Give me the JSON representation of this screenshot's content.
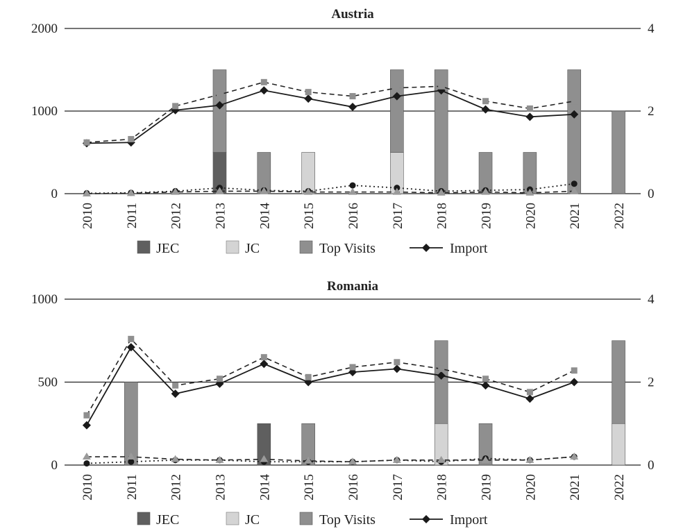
{
  "legend": {
    "jec_label": "JEC",
    "jc_label": "JC",
    "top_visits_label": "Top Visits",
    "import_label": "Import"
  },
  "colors": {
    "jec": "#5f5f5f",
    "jc": "#d4d4d4",
    "top_visits": "#8f8f8f",
    "import_line": "#1a1a1a",
    "dashed_series": "#8f8f8f"
  },
  "chart_data": [
    {
      "type": "bar",
      "title": "Austria",
      "categories": [
        "2010",
        "2011",
        "2012",
        "2013",
        "2014",
        "2015",
        "2016",
        "2017",
        "2018",
        "2019",
        "2020",
        "2021",
        "2022"
      ],
      "left_axis": {
        "ylim": [
          0,
          2000
        ],
        "ticks": [
          "0",
          "1000",
          "2000"
        ],
        "tick_values": [
          0,
          1000,
          2000
        ]
      },
      "right_axis": {
        "ylim": [
          0,
          4
        ],
        "ticks": [
          "0",
          "2",
          "4"
        ],
        "tick_values": [
          0,
          2,
          4
        ]
      },
      "grid": true,
      "legend_position": "bottom",
      "bar_series": [
        {
          "name": "JEC",
          "axis": "right",
          "values": [
            0,
            0,
            0,
            1,
            0,
            0,
            0,
            0,
            0,
            0,
            0,
            0,
            0
          ]
        },
        {
          "name": "JC",
          "axis": "right",
          "values": [
            0,
            0,
            0,
            0,
            0,
            1,
            0,
            1,
            0,
            0,
            0,
            0,
            0
          ]
        },
        {
          "name": "Top Visits",
          "axis": "right",
          "values": [
            0,
            0,
            0,
            2,
            1,
            0,
            0,
            2,
            3,
            1,
            1,
            3,
            2
          ]
        }
      ],
      "line_series": [
        {
          "name": "Import",
          "axis": "left",
          "marker": "diamond",
          "dash": "solid",
          "values": [
            610,
            620,
            1010,
            1070,
            1250,
            1150,
            1050,
            1180,
            1250,
            1020,
            930,
            960,
            null
          ]
        },
        {
          "axis": "left",
          "marker": "square",
          "dash": "dashed",
          "values": [
            620,
            660,
            1060,
            1200,
            1350,
            1230,
            1180,
            1280,
            1300,
            1120,
            1030,
            1120,
            null
          ]
        },
        {
          "axis": "left",
          "marker": "circle",
          "dash": "dotted",
          "values": [
            5,
            10,
            30,
            70,
            40,
            30,
            100,
            70,
            30,
            40,
            50,
            120,
            null
          ]
        },
        {
          "axis": "left",
          "marker": "triangle",
          "dash": "dashed",
          "values": [
            0,
            5,
            20,
            30,
            30,
            20,
            20,
            20,
            10,
            20,
            10,
            30,
            null
          ]
        }
      ]
    },
    {
      "type": "bar",
      "title": "Romania",
      "categories": [
        "2010",
        "2011",
        "2012",
        "2013",
        "2014",
        "2015",
        "2016",
        "2017",
        "2018",
        "2019",
        "2020",
        "2021",
        "2022"
      ],
      "left_axis": {
        "ylim": [
          0,
          1000
        ],
        "ticks": [
          "0",
          "500",
          "1000"
        ],
        "tick_values": [
          0,
          500,
          1000
        ]
      },
      "right_axis": {
        "ylim": [
          0,
          4
        ],
        "ticks": [
          "0",
          "2",
          "4"
        ],
        "tick_values": [
          0,
          2,
          4
        ]
      },
      "grid": true,
      "legend_position": "bottom",
      "bar_series": [
        {
          "name": "JEC",
          "axis": "right",
          "values": [
            0,
            0,
            0,
            0,
            1,
            0,
            0,
            0,
            0,
            0,
            0,
            0,
            0
          ]
        },
        {
          "name": "JC",
          "axis": "right",
          "values": [
            0,
            0,
            0,
            0,
            0,
            0,
            0,
            0,
            1,
            0,
            0,
            0,
            1
          ]
        },
        {
          "name": "Top Visits",
          "axis": "right",
          "values": [
            0,
            2,
            0,
            0,
            0,
            1,
            0,
            0,
            2,
            1,
            0,
            0,
            2
          ]
        }
      ],
      "line_series": [
        {
          "name": "Import",
          "axis": "left",
          "marker": "diamond",
          "dash": "solid",
          "values": [
            240,
            710,
            430,
            490,
            610,
            500,
            560,
            580,
            540,
            480,
            400,
            500,
            null
          ]
        },
        {
          "axis": "left",
          "marker": "square",
          "dash": "dashed",
          "values": [
            300,
            760,
            480,
            520,
            650,
            530,
            590,
            620,
            580,
            520,
            440,
            570,
            null
          ]
        },
        {
          "axis": "left",
          "marker": "circle",
          "dash": "dotted",
          "values": [
            10,
            20,
            30,
            30,
            20,
            20,
            20,
            30,
            20,
            40,
            30,
            50,
            null
          ]
        },
        {
          "axis": "left",
          "marker": "triangle",
          "dash": "dashed",
          "values": [
            50,
            50,
            35,
            30,
            35,
            25,
            20,
            30,
            30,
            30,
            30,
            50,
            null
          ]
        }
      ]
    }
  ]
}
